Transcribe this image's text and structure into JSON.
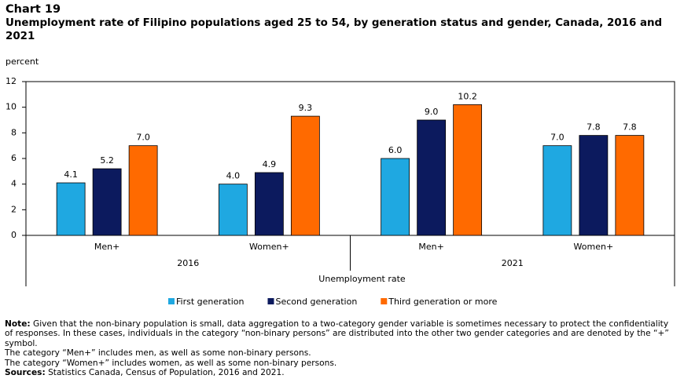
{
  "chart_data": {
    "type": "bar",
    "title": "Chart 19",
    "subtitle": "Unemployment rate of Filipino populations aged 25 to 54, by generation status and gender, Canada, 2016 and 2021",
    "y_label": "percent",
    "x_label": "Unemployment rate",
    "categories": [
      "Men+",
      "Women+",
      "Men+",
      "Women+"
    ],
    "groups": [
      "2016",
      "2021"
    ],
    "series": [
      {
        "name": "First generation",
        "color": "#1fa8e1",
        "values": [
          4.1,
          4.0,
          6.0,
          7.0
        ],
        "value_labels": [
          "4.1",
          "4.0",
          "6.0",
          "7.0"
        ]
      },
      {
        "name": "Second generation",
        "color": "#0c1a5e",
        "values": [
          5.2,
          4.9,
          9.0,
          7.8
        ],
        "value_labels": [
          "5.2",
          "4.9",
          "9.0",
          "7.8"
        ]
      },
      {
        "name": "Third generation or more",
        "color": "#ff6a00",
        "values": [
          7.0,
          9.3,
          10.2,
          7.8
        ],
        "value_labels": [
          "7.0",
          "9.3",
          "10.2",
          "7.8"
        ]
      }
    ],
    "ylim": [
      0,
      12
    ],
    "yticks": [
      0,
      2,
      4,
      6,
      8,
      10,
      12
    ],
    "grid": false
  },
  "notes": {
    "note_label": "Note:",
    "note_text": "Given that the non-binary population is small, data aggregation to a two-category gender variable is sometimes necessary to protect the confidentiality of responses. In these cases, individuals in the category “non-binary persons” are distributed into the other two gender categories and are denoted by the “+” symbol.",
    "men_note": "The category “Men+” includes men, as well as some non-binary persons.",
    "women_note": "The category “Women+” includes women, as well as some non-binary persons.",
    "sources_label": "Sources:",
    "sources_text": "Statistics Canada, Census of Population, 2016 and 2021."
  }
}
